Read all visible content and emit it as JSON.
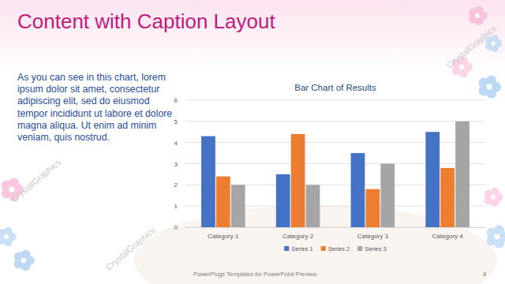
{
  "slide": {
    "title": "Content with Caption Layout",
    "caption": "As you can see in this chart, lorem ipsum dolor sit amet, consectetur adipiscing elit, sed do eiusmod tempor incididunt ut labore et dolore magna aliqua. Ut enim ad minim veniam, quis nostrud.",
    "footer": "PowerPlugs Templates for PowerPoint Preview",
    "page_number": 8,
    "watermark": "CrystalGraphics"
  },
  "chart_data": {
    "type": "bar",
    "title": "Bar Chart of Results",
    "categories": [
      "Category 1",
      "Category 2",
      "Category 3",
      "Category 4"
    ],
    "series": [
      {
        "name": "Series 1",
        "color": "#4472c4",
        "values": [
          4.3,
          2.5,
          3.5,
          4.5
        ]
      },
      {
        "name": "Series 2",
        "color": "#ed7d31",
        "values": [
          2.4,
          4.4,
          1.8,
          2.8
        ]
      },
      {
        "name": "Series 3",
        "color": "#a5a5a5",
        "values": [
          2.0,
          2.0,
          3.0,
          5.0
        ]
      }
    ],
    "ylim": [
      0,
      6
    ],
    "yticks": [
      0,
      1,
      2,
      3,
      4,
      5,
      6
    ],
    "grid": true,
    "legend": "bottom"
  }
}
